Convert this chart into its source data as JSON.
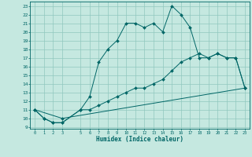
{
  "title": "",
  "xlabel": "Humidex (Indice chaleur)",
  "ylabel": "",
  "bg_color": "#c5e8e0",
  "line_color": "#006666",
  "grid_color": "#90c8be",
  "xlim": [
    -0.5,
    23.5
  ],
  "ylim": [
    8.8,
    23.5
  ],
  "xticks": [
    0,
    1,
    2,
    3,
    5,
    6,
    7,
    8,
    9,
    10,
    11,
    12,
    13,
    14,
    15,
    16,
    17,
    18,
    19,
    20,
    21,
    22,
    23
  ],
  "yticks": [
    9,
    10,
    11,
    12,
    13,
    14,
    15,
    16,
    17,
    18,
    19,
    20,
    21,
    22,
    23
  ],
  "line1_x": [
    0,
    1,
    2,
    3,
    5,
    6,
    7,
    8,
    9,
    10,
    11,
    12,
    13,
    14,
    15,
    16,
    17,
    18,
    19,
    20,
    21,
    22,
    23
  ],
  "line1_y": [
    11,
    10,
    9.5,
    9.5,
    11,
    12.5,
    16.5,
    18,
    19,
    21,
    21,
    20.5,
    21,
    20,
    23,
    22,
    20.5,
    17,
    17,
    17.5,
    17,
    17,
    13.5
  ],
  "line2_x": [
    0,
    1,
    2,
    3,
    5,
    6,
    7,
    8,
    9,
    10,
    11,
    12,
    13,
    14,
    15,
    16,
    17,
    18,
    19,
    20,
    21,
    22,
    23
  ],
  "line2_y": [
    11,
    10,
    9.5,
    9.5,
    11,
    11,
    11.5,
    12,
    12.5,
    13,
    13.5,
    13.5,
    14,
    14.5,
    15.5,
    16.5,
    17,
    17.5,
    17,
    17.5,
    17,
    17,
    13.5
  ],
  "line3_x": [
    0,
    3,
    23
  ],
  "line3_y": [
    11,
    10,
    13.5
  ]
}
